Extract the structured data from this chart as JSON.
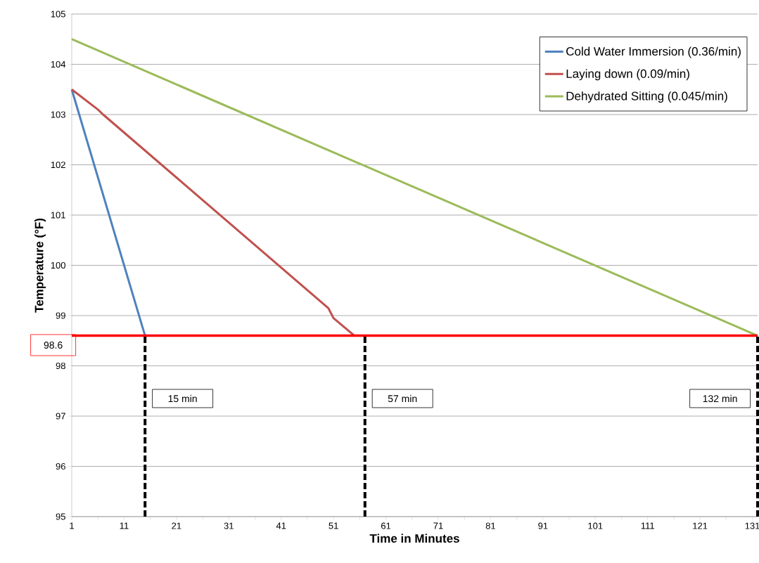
{
  "chart_data": {
    "type": "line",
    "xlabel": "Time in Minutes",
    "ylabel": "Temperature (°F)",
    "xlim": [
      1,
      132
    ],
    "ylim": [
      95,
      105
    ],
    "xticks": [
      1,
      {
        "value": 6,
        "label": null
      },
      11,
      {
        "value": 16,
        "label": null
      },
      21,
      {
        "value": 26,
        "label": null
      },
      31,
      {
        "value": 36,
        "label": null
      },
      41,
      {
        "value": 46,
        "label": null
      },
      51,
      {
        "value": 56,
        "label": null
      },
      61,
      {
        "value": 66,
        "label": null
      },
      71,
      {
        "value": 76,
        "label": null
      },
      81,
      {
        "value": 86,
        "label": null
      },
      91,
      {
        "value": 96,
        "label": null
      },
      101,
      {
        "value": 106,
        "label": null
      },
      111,
      {
        "value": 116,
        "label": null
      },
      121,
      {
        "value": 126,
        "label": null
      },
      131
    ],
    "yticks": [
      95,
      96,
      97,
      98,
      99,
      100,
      101,
      102,
      103,
      104,
      105
    ],
    "grid": "y",
    "legend": "top right",
    "line_style": "solid",
    "series": [
      {
        "name": "Cold Water Immersion (0.36/min)",
        "color": "#4f81bd",
        "x": [
          1,
          15
        ],
        "values": [
          103.5,
          98.6
        ]
      },
      {
        "name": "Laying down (0.09/min)",
        "color": "#c0504d",
        "x": [
          1,
          6,
          7,
          50,
          51,
          55
        ],
        "values": [
          103.5,
          103.1,
          103.0,
          99.15,
          98.95,
          98.6
        ]
      },
      {
        "name": "Dehydrated Sitting (0.045/min)",
        "color": "#9bbb59",
        "x": [
          1,
          132
        ],
        "values": [
          104.5,
          98.6
        ]
      }
    ],
    "ref_lines": [
      {
        "axis": "y",
        "value": 98.6,
        "label": "98.6",
        "color": "#ff0000",
        "line_style": "solid"
      },
      {
        "axis": "x",
        "value": 15,
        "label": "15 min",
        "color": "#000000",
        "line_style": "dashed"
      },
      {
        "axis": "x",
        "value": 57,
        "label": "57 min",
        "color": "#000000",
        "line_style": "dashed"
      },
      {
        "axis": "x",
        "value": 132,
        "label": "132 min",
        "color": "#000000",
        "line_style": "dashed"
      }
    ]
  }
}
